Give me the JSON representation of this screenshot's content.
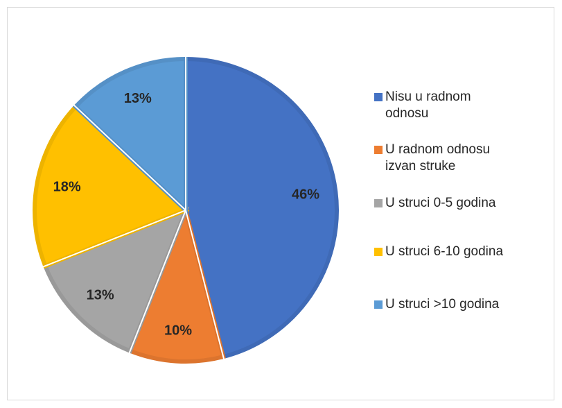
{
  "chart_data": {
    "type": "pie",
    "categories": [
      "Nisu u radnom odnosu",
      "U radnom odnosu izvan struke",
      "U struci 0-5 godina",
      "U struci 6-10 godina",
      "U struci >10 godina"
    ],
    "values": [
      46,
      10,
      13,
      18,
      13
    ],
    "value_labels": [
      "46%",
      "10%",
      "13%",
      "18%",
      "13%"
    ],
    "colors": [
      "#4472c4",
      "#ed7d31",
      "#a5a5a5",
      "#ffc000",
      "#5b9bd5"
    ],
    "legend": "right"
  }
}
